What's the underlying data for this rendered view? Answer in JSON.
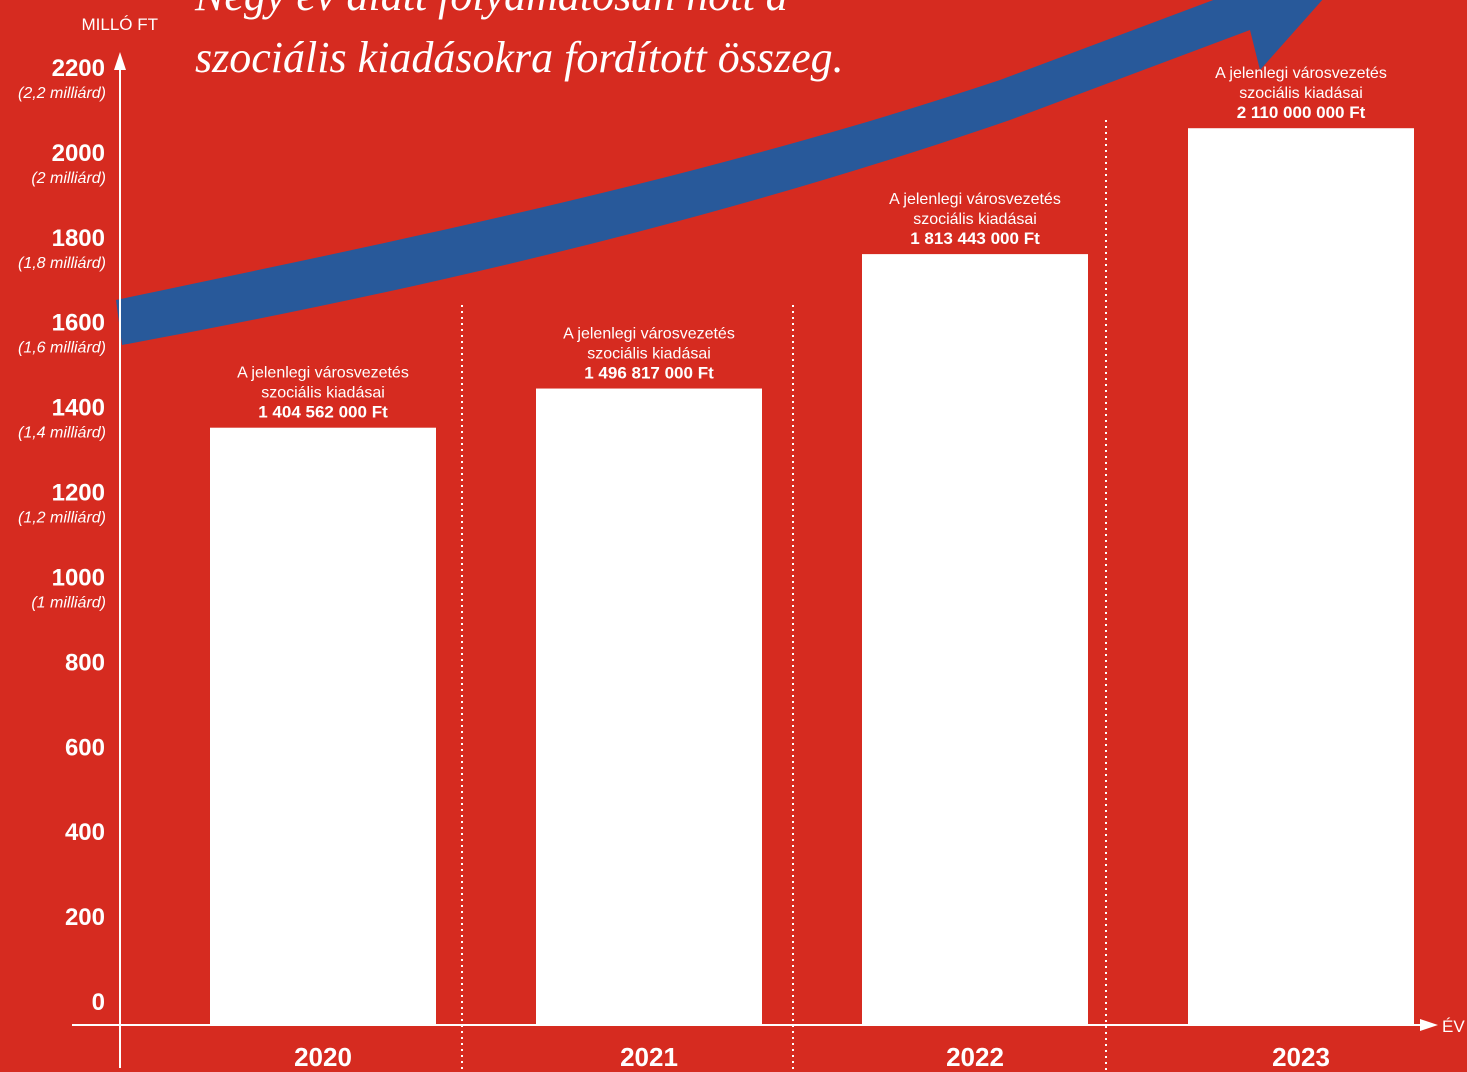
{
  "chart_data": {
    "type": "bar",
    "title_lines": [
      "Négy év alatt folyamatosan nőtt a",
      "szociális kiadásokra fordított összeg."
    ],
    "y_label": "MILLÓ FT",
    "x_label": "ÉV",
    "categories": [
      "2020",
      "2021",
      "2022",
      "2023"
    ],
    "values": [
      1404.562,
      1496.817,
      1813.443,
      2110
    ],
    "value_labels": [
      "1 404 562 000 Ft",
      "1 496 817 000 Ft",
      "1 813 443 000 Ft",
      "2 110 000 000 Ft"
    ],
    "bar_label_lines": [
      "A jelenlegi városvezetés",
      "szociális kiadásai"
    ],
    "color": "#ffffff",
    "ylim": [
      0,
      2200
    ],
    "yticks": [
      0,
      200,
      400,
      600,
      800,
      1000,
      1200,
      1400,
      1600,
      1800,
      2000,
      2200
    ],
    "ytick_sublabels": [
      null,
      null,
      null,
      null,
      null,
      "(1 milliárd)",
      "(1,2 milliárd)",
      "(1,4 milliárd)",
      "(1,6 milliárd)",
      "(1,8 milliárd)",
      "(2 milliárd)",
      "(2,2 milliárd)"
    ]
  }
}
